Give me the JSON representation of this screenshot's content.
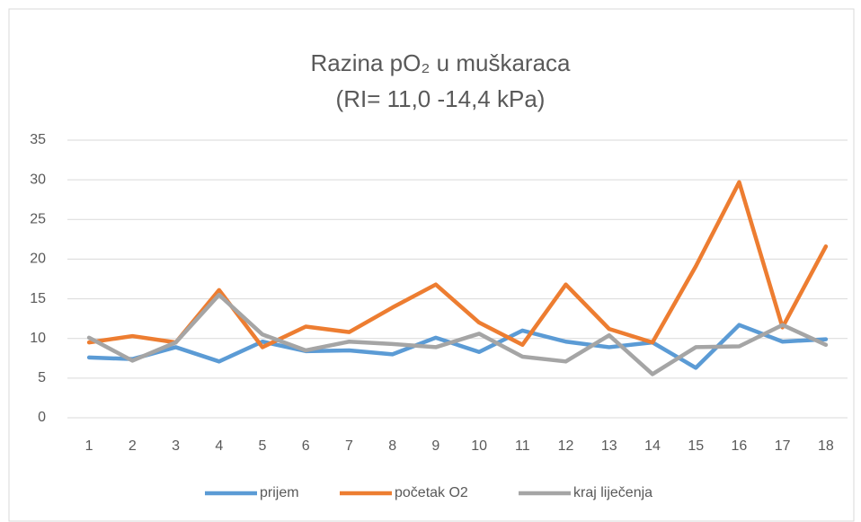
{
  "chart_data": {
    "type": "line",
    "title": "Razina pO₂ u muškaraca",
    "subtitle": "(RI= 11,0 -14,4 kPa)",
    "categories": [
      1,
      2,
      3,
      4,
      5,
      6,
      7,
      8,
      9,
      10,
      11,
      12,
      13,
      14,
      15,
      16,
      17,
      18
    ],
    "series": [
      {
        "name": "prijem",
        "color": "#5b9bd5",
        "values": [
          7.6,
          7.4,
          8.9,
          7.1,
          9.6,
          8.4,
          8.5,
          8.0,
          10.1,
          8.3,
          11.0,
          9.6,
          8.9,
          9.5,
          6.3,
          11.7,
          9.6,
          9.9
        ]
      },
      {
        "name": "početak O2",
        "color": "#ed7d31",
        "values": [
          9.5,
          10.3,
          9.5,
          16.1,
          8.9,
          11.5,
          10.8,
          13.9,
          16.8,
          12.0,
          9.2,
          16.8,
          11.2,
          9.5,
          19.1,
          29.7,
          11.4,
          21.6
        ]
      },
      {
        "name": "kraj liječenja",
        "color": "#a5a5a5",
        "values": [
          10.1,
          7.2,
          9.5,
          15.5,
          10.5,
          8.5,
          9.6,
          9.3,
          8.9,
          10.6,
          7.7,
          7.1,
          10.4,
          5.5,
          8.9,
          9.0,
          11.7,
          9.2
        ]
      }
    ],
    "ylim": [
      0,
      35
    ],
    "yticks": [
      0,
      5,
      10,
      15,
      20,
      25,
      30,
      35
    ],
    "grid": true,
    "legend": "bottom"
  }
}
